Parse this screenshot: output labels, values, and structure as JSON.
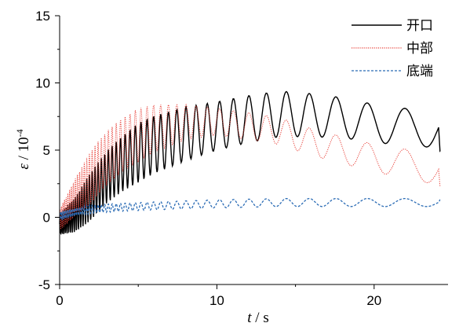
{
  "chart_data": {
    "type": "line",
    "xlabel": {
      "italic": "t",
      "rest": " / s"
    },
    "ylabel": {
      "italic": "ε",
      "rest": " / 10",
      "sup": "-4"
    },
    "xlim": [
      0,
      24.7
    ],
    "ylim": [
      -5,
      15
    ],
    "x_ticks": [
      0,
      10,
      20
    ],
    "x_tick_labels": [
      "0",
      "10",
      "20"
    ],
    "y_ticks": [
      -5,
      0,
      5,
      10,
      15
    ],
    "y_tick_labels": [
      "-5",
      "0",
      "5",
      "10",
      "15"
    ],
    "grid": false,
    "legend_position": "top-right",
    "series": [
      {
        "name": "开口",
        "color": "#000000",
        "style": "solid",
        "mean": [
          [
            0,
            -0.5
          ],
          [
            1,
            0.2
          ],
          [
            2,
            1.6
          ],
          [
            3,
            3.0
          ],
          [
            4,
            4.0
          ],
          [
            5,
            4.8
          ],
          [
            6,
            5.4
          ],
          [
            8,
            6.2
          ],
          [
            10,
            6.8
          ],
          [
            12,
            7.3
          ],
          [
            14,
            7.7
          ],
          [
            16,
            7.6
          ],
          [
            18,
            7.4
          ],
          [
            20,
            7.0
          ],
          [
            22,
            6.7
          ],
          [
            24,
            6.6
          ]
        ],
        "amplitude": [
          [
            0,
            0.8
          ],
          [
            2,
            1.8
          ],
          [
            5,
            2.2
          ],
          [
            8,
            2.0
          ],
          [
            10,
            1.8
          ],
          [
            14,
            1.7
          ],
          [
            20,
            1.4
          ],
          [
            24,
            1.4
          ]
        ],
        "end_value": 4.9
      },
      {
        "name": "中部",
        "color": "#e8423a",
        "style": "dotted",
        "mean": [
          [
            0,
            -0.2
          ],
          [
            1,
            1.5
          ],
          [
            2,
            3.0
          ],
          [
            3,
            4.4
          ],
          [
            4,
            5.4
          ],
          [
            5,
            6.1
          ],
          [
            6,
            6.6
          ],
          [
            8,
            7.1
          ],
          [
            10,
            7.1
          ],
          [
            12,
            6.8
          ],
          [
            14,
            6.4
          ],
          [
            16,
            5.6
          ],
          [
            18,
            5.0
          ],
          [
            20,
            4.4
          ],
          [
            22,
            4.0
          ],
          [
            24,
            3.5
          ]
        ],
        "amplitude": [
          [
            0,
            0.8
          ],
          [
            2,
            2.0
          ],
          [
            5,
            2.0
          ],
          [
            8,
            1.3
          ],
          [
            10,
            1.0
          ],
          [
            14,
            1.0
          ],
          [
            18,
            1.0
          ],
          [
            24,
            1.1
          ]
        ],
        "end_value": 2.3
      },
      {
        "name": "底端",
        "color": "#2b6cb5",
        "style": "dashed",
        "mean": [
          [
            0,
            0.1
          ],
          [
            1,
            0.4
          ],
          [
            2,
            0.6
          ],
          [
            4,
            0.75
          ],
          [
            6,
            0.85
          ],
          [
            10,
            1.0
          ],
          [
            14,
            1.1
          ],
          [
            20,
            1.1
          ],
          [
            24,
            1.1
          ]
        ],
        "amplitude": [
          [
            0,
            0.3
          ],
          [
            5,
            0.3
          ],
          [
            10,
            0.3
          ],
          [
            20,
            0.3
          ],
          [
            24,
            0.3
          ]
        ],
        "end_value": 1.3
      }
    ]
  }
}
